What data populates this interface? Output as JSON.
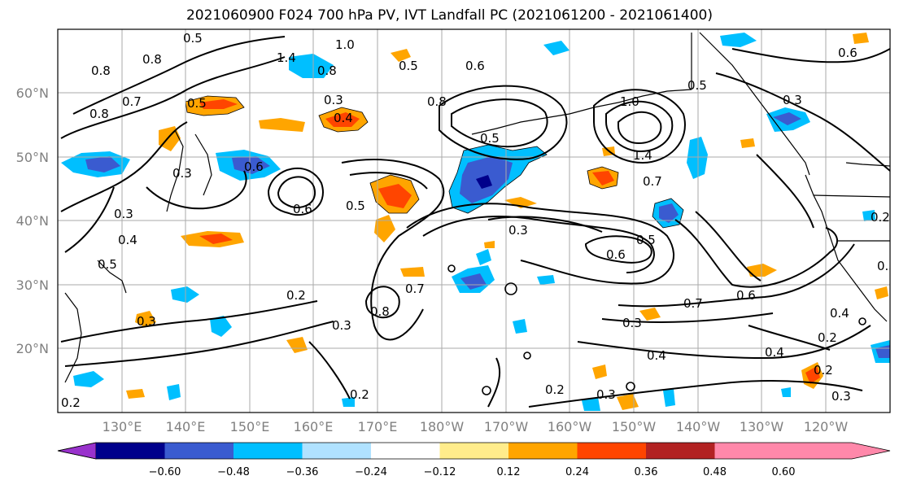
{
  "title": "2021060900 F024 700 hPa PV, IVT Landfall PC (2021061200 - 2021061400)",
  "lat_labels": [
    "60°N",
    "50°N",
    "40°N",
    "30°N",
    "20°N"
  ],
  "lon_labels": [
    "130°E",
    "140°E",
    "150°E",
    "160°E",
    "170°E",
    "180°W",
    "170°W",
    "160°W",
    "150°W",
    "140°W",
    "130°W",
    "120°W"
  ],
  "colorbar": {
    "colors": [
      "#9932CC",
      "#00008B",
      "#3A5BD0",
      "#00BFFF",
      "#B0E2FF",
      "#FFFFFF",
      "#FFEC8B",
      "#FFA500",
      "#FF4500",
      "#B22222",
      "#FF88AA"
    ],
    "tick_labels": [
      "−0.60",
      "−0.48",
      "−0.36",
      "−0.24",
      "−0.12",
      "0.12",
      "0.24",
      "0.36",
      "0.48",
      "0.60"
    ]
  },
  "contour_labels": [
    "0.5",
    "0.8",
    "1.4",
    "0.8",
    "0.5",
    "1.0",
    "0.6",
    "0.6",
    "0.8",
    "0.7",
    "0.8",
    "0.5",
    "0.4",
    "0.3",
    "1.0",
    "0.3",
    "0.5",
    "0.6",
    "0.3",
    "0.8",
    "0.5",
    "1.4",
    "0.7",
    "0.3",
    "0.4",
    "0.5",
    "0.3",
    "0.6",
    "0.5",
    "0.7",
    "0.6",
    "0.2",
    "0.3",
    "0.8",
    "0.7",
    "0.3",
    "0.4",
    "0.4",
    "0.2",
    "0.2",
    "0.4",
    "0.2",
    "0.3",
    "0.3",
    "0.2",
    "0.2",
    "0.3",
    "0.5",
    "0.6",
    "0.2",
    "0.3"
  ]
}
